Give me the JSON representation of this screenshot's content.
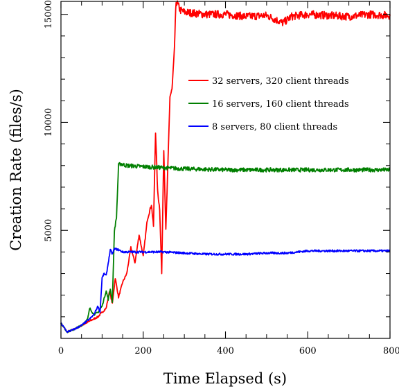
{
  "chart_data": {
    "type": "line",
    "title": "",
    "xlabel": "Time Elapsed (s)",
    "ylabel": "Creation Rate (files/s)",
    "xlim": [
      0,
      800
    ],
    "ylim": [
      0,
      15600
    ],
    "xticks": [
      0,
      200,
      400,
      600,
      800
    ],
    "yticks": [
      5000,
      10000,
      15000
    ],
    "grid": false,
    "legend_position": "right",
    "series": [
      {
        "name": "32 servers, 320 client threads",
        "color": "#ff0000",
        "x": [
          0,
          15,
          30,
          50,
          70,
          90,
          100,
          110,
          118,
          125,
          132,
          140,
          150,
          160,
          170,
          180,
          190,
          200,
          210,
          220,
          225,
          230,
          235,
          240,
          245,
          250,
          255,
          260,
          265,
          270,
          275,
          280,
          290,
          300,
          350,
          400,
          450,
          500,
          540,
          560,
          600,
          650,
          700,
          750,
          800
        ],
        "y": [
          700,
          300,
          400,
          600,
          800,
          1000,
          1200,
          1400,
          2200,
          1600,
          2800,
          1900,
          2600,
          3000,
          4200,
          3500,
          4800,
          3800,
          5500,
          6200,
          5200,
          9600,
          6800,
          6000,
          3000,
          8800,
          5000,
          8000,
          11200,
          11500,
          13000,
          15600,
          15200,
          15100,
          15000,
          15000,
          14900,
          14950,
          14600,
          14900,
          15000,
          14950,
          14900,
          15000,
          14950
        ]
      },
      {
        "name": "16 servers, 160 client threads",
        "color": "#007f00",
        "x": [
          0,
          15,
          30,
          50,
          65,
          70,
          80,
          90,
          100,
          110,
          115,
          120,
          125,
          130,
          135,
          140,
          145,
          150,
          160,
          200,
          250,
          300,
          400,
          500,
          600,
          700,
          800
        ],
        "y": [
          700,
          300,
          400,
          600,
          900,
          1400,
          1100,
          1200,
          1500,
          2200,
          1800,
          2300,
          1700,
          5000,
          5600,
          8000,
          8100,
          8050,
          8000,
          7950,
          7900,
          7850,
          7800,
          7800,
          7800,
          7800,
          7800
        ]
      },
      {
        "name": "8 servers, 80 client threads",
        "color": "#0000ff",
        "x": [
          0,
          15,
          30,
          50,
          70,
          80,
          90,
          95,
          100,
          105,
          110,
          115,
          120,
          125,
          130,
          140,
          150,
          200,
          250,
          300,
          350,
          400,
          450,
          500,
          550,
          600,
          650,
          700,
          750,
          800
        ],
        "y": [
          700,
          300,
          400,
          600,
          900,
          1100,
          1500,
          1200,
          2800,
          3000,
          2900,
          3500,
          4100,
          3900,
          4150,
          4100,
          4000,
          4000,
          4000,
          3950,
          3900,
          3900,
          3900,
          3950,
          3950,
          4050,
          4050,
          4050,
          4050,
          4050
        ]
      }
    ]
  }
}
